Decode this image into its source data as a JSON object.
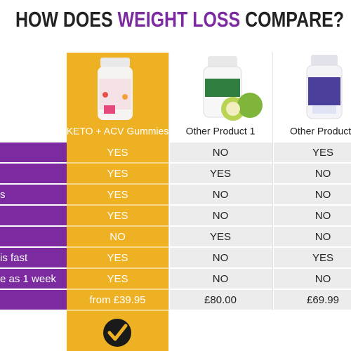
{
  "title": {
    "parts": [
      "HOW DOES ",
      "WEIGHT LOSS",
      " COMPARE?"
    ]
  },
  "columns": [
    "KETO + ACV Gummies",
    "Other Product 1",
    "Other Product"
  ],
  "rows": [
    {
      "cells": [
        "YES",
        "NO",
        "YES"
      ]
    },
    {
      "cells": [
        "YES",
        "YES",
        "NO"
      ]
    },
    {
      "label": "s",
      "cells": [
        "YES",
        "NO",
        "NO"
      ]
    },
    {
      "cells": [
        "YES",
        "NO",
        "NO"
      ]
    },
    {
      "cells": [
        "NO",
        "YES",
        "NO"
      ]
    },
    {
      "label": "is fast",
      "cells": [
        "YES",
        "NO",
        "YES"
      ]
    },
    {
      "label": "e as 1 week",
      "cells": [
        "YES",
        "NO",
        "NO"
      ]
    },
    {
      "cells": [
        "from £39.95",
        "£80.00",
        "£69.99"
      ]
    }
  ]
}
